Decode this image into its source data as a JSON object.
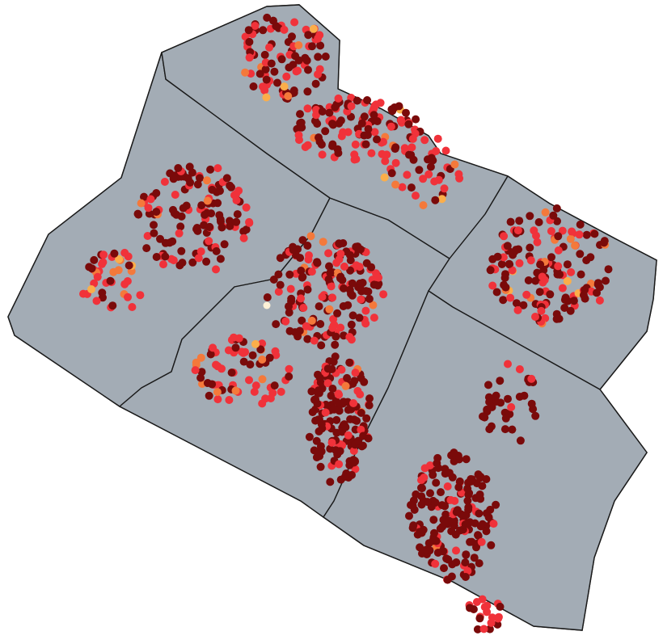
{
  "map": {
    "background_color": "#ffffff",
    "region_fill": "#a3acb5",
    "boundary_color": "#1a1a1a",
    "regions": [
      {
        "id": "north-strip"
      },
      {
        "id": "west"
      },
      {
        "id": "central"
      },
      {
        "id": "east"
      },
      {
        "id": "southeast"
      }
    ],
    "point_classes": [
      {
        "class": "very-high",
        "color": "#7a0a0a"
      },
      {
        "class": "high",
        "color": "#f0323a"
      },
      {
        "class": "medium",
        "color": "#f4793b"
      },
      {
        "class": "low",
        "color": "#fbae4a"
      },
      {
        "class": "very-low",
        "color": "#fdf1d6"
      }
    ]
  }
}
